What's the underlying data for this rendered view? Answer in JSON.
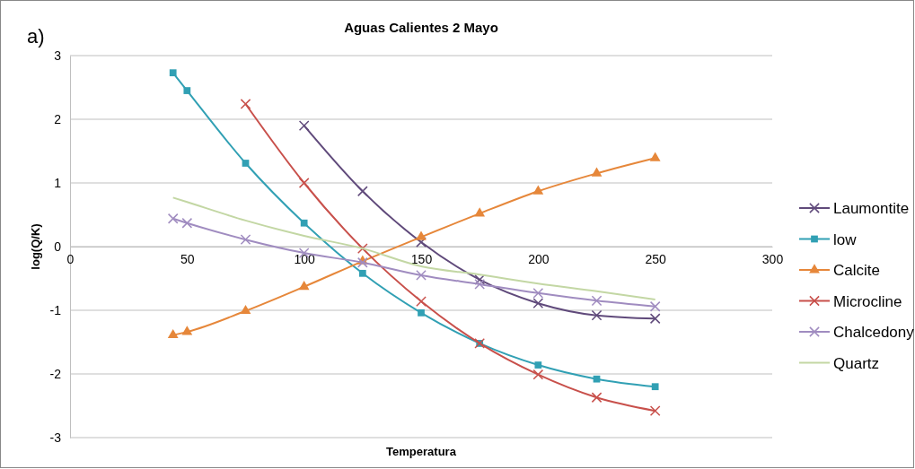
{
  "chart_data": {
    "type": "line",
    "title": "Aguas Calientes 2 Mayo",
    "xlabel": "Temperatura",
    "ylabel": "log(Q/K)",
    "annotations": [
      "a)"
    ],
    "x": [
      44,
      50,
      75,
      100,
      125,
      150,
      175,
      200,
      225,
      250
    ],
    "xlim": [
      0,
      300
    ],
    "xticks": [
      0,
      50,
      100,
      150,
      200,
      250,
      300
    ],
    "ylim": [
      -3,
      3
    ],
    "yticks": [
      -3,
      -2,
      -1,
      0,
      1,
      2,
      3
    ],
    "grid": "y",
    "legend": "right",
    "series": [
      {
        "name": "Laumontite",
        "color": "#604a7b",
        "marker": "cross",
        "values": [
          null,
          null,
          null,
          1.9,
          0.87,
          0.07,
          -0.52,
          -0.89,
          -1.08,
          -1.13
        ]
      },
      {
        "name": "low",
        "color": "#31a0b4",
        "marker": "square",
        "values": [
          2.73,
          2.45,
          1.31,
          0.37,
          -0.42,
          -1.04,
          -1.52,
          -1.86,
          -2.08,
          -2.2
        ]
      },
      {
        "name": "Calcite",
        "color": "#e6873a",
        "marker": "triangle",
        "values": [
          -1.39,
          -1.34,
          -1.01,
          -0.63,
          -0.23,
          0.15,
          0.52,
          0.87,
          1.15,
          1.39
        ]
      },
      {
        "name": "Microcline",
        "color": "#c8504b",
        "marker": "cross",
        "values": [
          null,
          null,
          2.24,
          1.0,
          -0.03,
          -0.86,
          -1.52,
          -2.01,
          -2.37,
          -2.58
        ]
      },
      {
        "name": "Chalcedony",
        "color": "#a08cc0",
        "marker": "cross",
        "values": [
          0.44,
          0.37,
          0.11,
          -0.1,
          -0.25,
          -0.45,
          -0.59,
          -0.73,
          -0.85,
          -0.94
        ]
      },
      {
        "name": "Quartz",
        "color": "#c3d7a4",
        "marker": "none",
        "values": [
          0.77,
          0.7,
          0.41,
          0.17,
          -0.03,
          -0.31,
          -0.44,
          -0.58,
          -0.7,
          -0.83
        ]
      }
    ]
  }
}
